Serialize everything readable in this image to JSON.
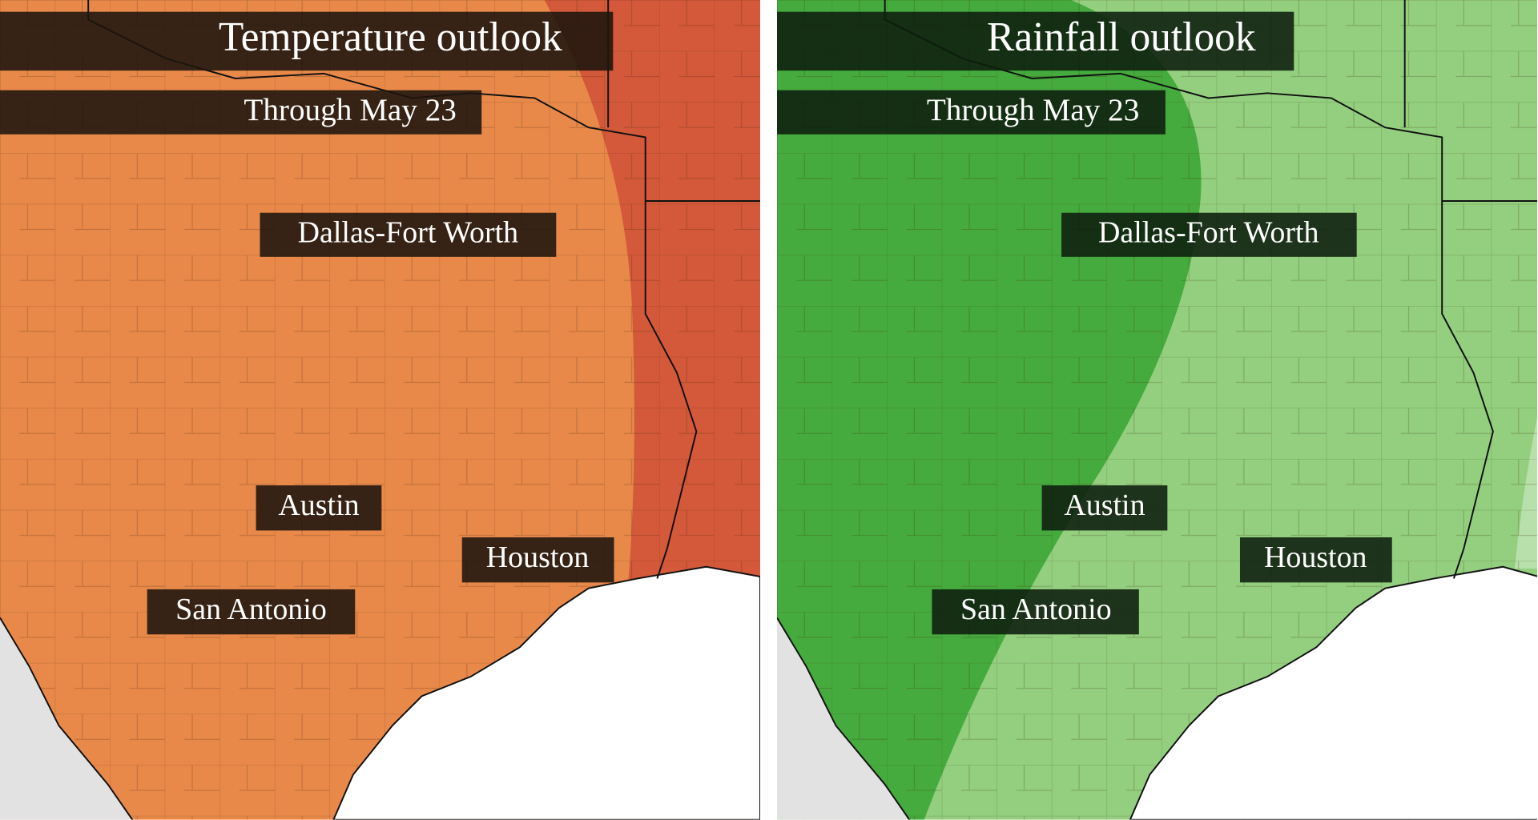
{
  "panels": [
    {
      "title": "Temperature outlook",
      "subtitle": "Through May 23",
      "cities": [
        "Dallas-Fort Worth",
        "Austin",
        "Houston",
        "San Antonio"
      ]
    },
    {
      "title": "Rainfall outlook",
      "subtitle": "Through May 23",
      "cities": [
        "Dallas-Fort Worth",
        "Austin",
        "Houston",
        "San Antonio"
      ]
    }
  ]
}
